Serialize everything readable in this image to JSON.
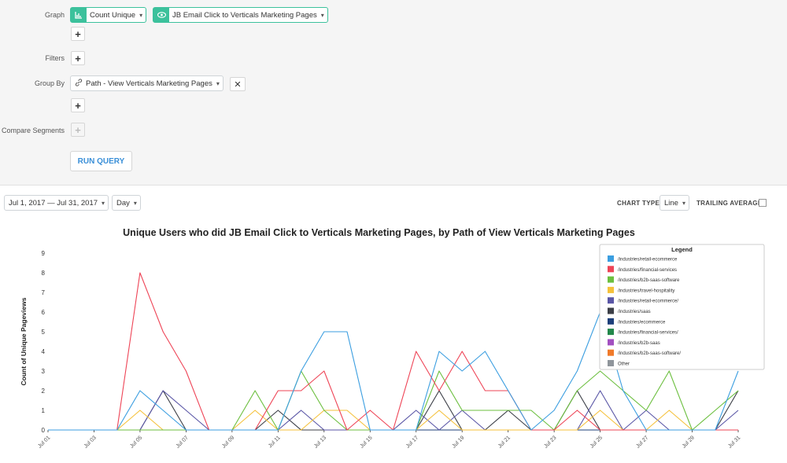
{
  "query": {
    "graph_label": "Graph",
    "graph_measure": "Count Unique",
    "graph_event": "JB Email Click to Verticals Marketing Pages",
    "filters_label": "Filters",
    "group_by_label": "Group By",
    "group_by_value": "Path - View Verticals Marketing Pages",
    "compare_label": "Compare Segments",
    "run_label": "RUN QUERY",
    "plus": "+",
    "remove": "✕"
  },
  "controls": {
    "date_range": "Jul 1, 2017 — Jul 31, 2017",
    "interval": "Day",
    "chart_type_label": "CHART TYPE",
    "chart_type_value": "Line",
    "trailing_label": "TRAILING AVERAGE"
  },
  "icons": {
    "graph": "bar-chart-icon",
    "event": "eye-icon",
    "group": "link-icon"
  },
  "colors": {
    "accent": "#3cc19c",
    "run": "#3a8fd8"
  },
  "chart_data": {
    "type": "line",
    "title": "Unique Users who did JB Email Click to Verticals Marketing Pages, by Path of View Verticals Marketing Pages",
    "ylabel": "Count of Unique Pageviews",
    "xlabel": "",
    "ylim": [
      0,
      9
    ],
    "yticks": [
      0,
      1,
      2,
      3,
      4,
      5,
      6,
      7,
      8,
      9
    ],
    "x": [
      "Jul 01",
      "Jul 02",
      "Jul 03",
      "Jul 04",
      "Jul 05",
      "Jul 06",
      "Jul 07",
      "Jul 08",
      "Jul 09",
      "Jul 10",
      "Jul 11",
      "Jul 12",
      "Jul 13",
      "Jul 14",
      "Jul 15",
      "Jul 16",
      "Jul 17",
      "Jul 18",
      "Jul 19",
      "Jul 20",
      "Jul 21",
      "Jul 22",
      "Jul 23",
      "Jul 24",
      "Jul 25",
      "Jul 26",
      "Jul 27",
      "Jul 28",
      "Jul 29",
      "Jul 30",
      "Jul 31"
    ],
    "xticks": [
      "Jul 01",
      "Jul 03",
      "Jul 05",
      "Jul 07",
      "Jul 09",
      "Jul 11",
      "Jul 13",
      "Jul 15",
      "Jul 17",
      "Jul 19",
      "Jul 21",
      "Jul 23",
      "Jul 25",
      "Jul 27",
      "Jul 29",
      "Jul 31"
    ],
    "grid": false,
    "legend_title": "Legend",
    "legend_position": "top-right",
    "series": [
      {
        "name": "/industries/retail-ecommerce",
        "color": "#3b9ee0",
        "values": [
          0,
          0,
          0,
          0,
          2,
          1,
          0,
          0,
          0,
          0,
          0,
          3,
          5,
          5,
          0,
          0,
          0,
          4,
          3,
          4,
          2,
          0,
          1,
          3,
          6,
          2,
          0,
          0,
          0,
          0,
          3
        ]
      },
      {
        "name": "/industries/financial-services",
        "color": "#ee4456",
        "values": [
          0,
          0,
          0,
          0,
          8,
          5,
          3,
          0,
          0,
          0,
          2,
          2,
          3,
          0,
          1,
          0,
          4,
          2,
          4,
          2,
          2,
          0,
          0,
          1,
          0,
          0,
          0,
          0,
          0,
          0,
          0
        ]
      },
      {
        "name": "/industries/b2b-saas-software",
        "color": "#6cbf3f",
        "values": [
          0,
          0,
          0,
          0,
          0,
          0,
          0,
          0,
          0,
          2,
          0,
          3,
          1,
          0,
          0,
          0,
          0,
          3,
          1,
          1,
          1,
          1,
          0,
          2,
          3,
          2,
          1,
          3,
          0,
          1,
          2
        ]
      },
      {
        "name": "/industries/travel-hospitality",
        "color": "#f5c13b",
        "values": [
          0,
          0,
          0,
          0,
          1,
          0,
          0,
          0,
          0,
          1,
          0,
          0,
          1,
          1,
          0,
          0,
          0,
          1,
          0,
          0,
          0,
          0,
          0,
          0,
          1,
          0,
          0,
          1,
          0,
          0,
          0
        ]
      },
      {
        "name": "/industries/retail-ecommerce/",
        "color": "#5a56a6",
        "values": [
          0,
          0,
          0,
          0,
          0,
          2,
          1,
          0,
          0,
          0,
          0,
          1,
          0,
          0,
          0,
          0,
          1,
          0,
          1,
          0,
          0,
          0,
          0,
          0,
          2,
          0,
          1,
          0,
          0,
          0,
          1
        ]
      },
      {
        "name": "/industries/saas",
        "color": "#3c3f47",
        "values": [
          0,
          0,
          0,
          0,
          0,
          2,
          0,
          0,
          0,
          0,
          1,
          0,
          0,
          0,
          0,
          0,
          0,
          2,
          0,
          0,
          1,
          0,
          0,
          2,
          0,
          0,
          0,
          0,
          0,
          0,
          2
        ]
      },
      {
        "name": "/industries/ecommerce",
        "color": "#1d3f7a",
        "values": [
          0,
          0,
          0,
          0,
          0,
          0,
          0,
          0,
          0,
          0,
          0,
          0,
          0,
          0,
          0,
          0,
          0,
          0,
          0,
          0,
          0,
          0,
          0,
          0,
          0,
          0,
          0,
          0,
          0,
          0,
          0
        ]
      },
      {
        "name": "/industries/financial-services/",
        "color": "#22874a",
        "values": [
          0,
          0,
          0,
          0,
          0,
          0,
          0,
          0,
          0,
          0,
          0,
          0,
          0,
          0,
          0,
          0,
          0,
          0,
          0,
          0,
          0,
          0,
          0,
          0,
          0,
          0,
          0,
          0,
          0,
          0,
          0
        ]
      },
      {
        "name": "/industries/b2b-saas",
        "color": "#a24fc0",
        "values": [
          0,
          0,
          0,
          0,
          0,
          0,
          0,
          0,
          0,
          0,
          0,
          0,
          0,
          0,
          0,
          0,
          0,
          0,
          0,
          0,
          0,
          0,
          0,
          0,
          0,
          0,
          0,
          0,
          0,
          0,
          0
        ]
      },
      {
        "name": "/industries/b2b-saas-software/",
        "color": "#f07a2a",
        "values": [
          0,
          0,
          0,
          0,
          0,
          0,
          0,
          0,
          0,
          0,
          0,
          0,
          0,
          0,
          0,
          0,
          0,
          0,
          0,
          0,
          0,
          0,
          0,
          0,
          0,
          0,
          0,
          0,
          0,
          0,
          0
        ]
      },
      {
        "name": "Other",
        "color": "#8f959b",
        "values": [
          0,
          0,
          0,
          0,
          0,
          0,
          0,
          0,
          0,
          0,
          0,
          0,
          0,
          0,
          0,
          0,
          0,
          0,
          0,
          0,
          0,
          0,
          0,
          0,
          0,
          0,
          0,
          0,
          0,
          0,
          0
        ]
      }
    ]
  }
}
